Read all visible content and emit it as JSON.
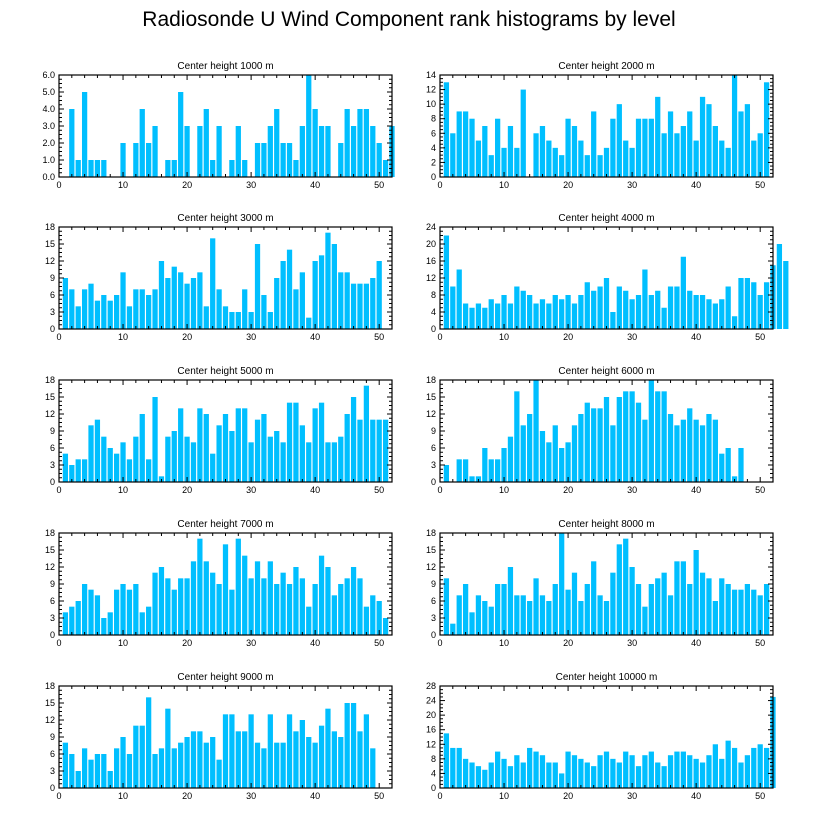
{
  "title": "Radiosonde U Wind Component rank histograms by level",
  "bar_color": "#00bfff",
  "chart_data": [
    {
      "type": "bar",
      "title": "Center height 1000 m",
      "xlim": [
        0,
        52
      ],
      "xticks": [
        0,
        10,
        20,
        30,
        40,
        50
      ],
      "ylim": [
        0,
        6
      ],
      "yticks": [
        0,
        1,
        2,
        3,
        4,
        5,
        6
      ],
      "ytick_labels": [
        "0.0",
        "1.0",
        "2.0",
        "3.0",
        "4.0",
        "5.0",
        "6.0"
      ],
      "values": [
        0,
        4,
        1,
        5,
        1,
        1,
        1,
        0,
        0,
        2,
        0,
        2,
        4,
        2,
        3,
        0,
        1,
        1,
        5,
        3,
        0,
        3,
        4,
        1,
        3,
        0,
        1,
        3,
        1,
        0,
        2,
        2,
        3,
        4,
        2,
        2,
        1,
        3,
        6,
        4,
        3,
        3,
        0,
        2,
        4,
        3,
        4,
        4,
        3,
        2,
        1,
        3
      ]
    },
    {
      "type": "bar",
      "title": "Center height 2000 m",
      "xlim": [
        0,
        52
      ],
      "xticks": [
        0,
        10,
        20,
        30,
        40,
        50
      ],
      "ylim": [
        0,
        14
      ],
      "yticks": [
        0,
        2,
        4,
        6,
        8,
        10,
        12,
        14
      ],
      "ytick_labels": [
        "0",
        "2",
        "4",
        "6",
        "8",
        "10",
        "12",
        "14"
      ],
      "values": [
        13,
        6,
        9,
        9,
        8,
        5,
        7,
        3,
        8,
        4,
        7,
        4,
        12,
        0,
        6,
        7,
        5,
        4,
        3,
        8,
        7,
        5,
        3,
        9,
        3,
        4,
        8,
        10,
        5,
        4,
        8,
        8,
        8,
        11,
        6,
        9,
        6,
        7,
        9,
        5,
        11,
        10,
        7,
        5,
        4,
        14,
        9,
        10,
        5,
        6,
        13
      ]
    },
    {
      "type": "bar",
      "title": "Center height 3000 m",
      "xlim": [
        0,
        52
      ],
      "xticks": [
        0,
        10,
        20,
        30,
        40,
        50
      ],
      "ylim": [
        0,
        18
      ],
      "yticks": [
        0,
        3,
        6,
        9,
        12,
        15,
        18
      ],
      "ytick_labels": [
        "0",
        "3",
        "6",
        "9",
        "12",
        "15",
        "18"
      ],
      "values": [
        9,
        7,
        4,
        7,
        8,
        5,
        6,
        5,
        6,
        10,
        4,
        7,
        7,
        6,
        7,
        12,
        9,
        11,
        10,
        8,
        9,
        10,
        4,
        16,
        7,
        4,
        3,
        3,
        7,
        3,
        15,
        6,
        3,
        9,
        12,
        14,
        7,
        10,
        2,
        12,
        13,
        17,
        15,
        10,
        10,
        8,
        8,
        8,
        9,
        12
      ]
    },
    {
      "type": "bar",
      "title": "Center height 4000 m",
      "xlim": [
        0,
        52
      ],
      "xticks": [
        0,
        10,
        20,
        30,
        40,
        50
      ],
      "ylim": [
        0,
        24
      ],
      "yticks": [
        0,
        4,
        8,
        12,
        16,
        20,
        24
      ],
      "ytick_labels": [
        "0",
        "4",
        "8",
        "12",
        "16",
        "20",
        "24"
      ],
      "values": [
        22,
        10,
        14,
        6,
        5,
        6,
        5,
        7,
        6,
        8,
        6,
        10,
        9,
        8,
        6,
        7,
        6,
        8,
        7,
        8,
        6,
        8,
        11,
        9,
        10,
        12,
        4,
        10,
        9,
        7,
        8,
        14,
        8,
        9,
        5,
        10,
        10,
        17,
        9,
        8,
        8,
        7,
        6,
        7,
        10,
        3,
        12,
        12,
        11,
        8,
        11,
        15,
        20,
        16
      ]
    },
    {
      "type": "bar",
      "title": "Center height 5000 m",
      "xlim": [
        0,
        52
      ],
      "xticks": [
        0,
        10,
        20,
        30,
        40,
        50
      ],
      "ylim": [
        0,
        18
      ],
      "yticks": [
        0,
        3,
        6,
        9,
        12,
        15,
        18
      ],
      "ytick_labels": [
        "0",
        "3",
        "6",
        "9",
        "12",
        "15",
        "18"
      ],
      "values": [
        5,
        3,
        4,
        4,
        10,
        11,
        8,
        6,
        5,
        7,
        4,
        8,
        12,
        4,
        15,
        1,
        8,
        9,
        13,
        8,
        7,
        13,
        12,
        5,
        10,
        12,
        9,
        13,
        13,
        7,
        11,
        12,
        8,
        9,
        7,
        14,
        14,
        10,
        7,
        13,
        14,
        7,
        7,
        8,
        12,
        15,
        11,
        17,
        11,
        11,
        11
      ]
    },
    {
      "type": "bar",
      "title": "Center height 6000 m",
      "xlim": [
        0,
        52
      ],
      "xticks": [
        0,
        10,
        20,
        30,
        40,
        50
      ],
      "ylim": [
        0,
        18
      ],
      "yticks": [
        0,
        3,
        6,
        9,
        12,
        15,
        18
      ],
      "ytick_labels": [
        "0",
        "3",
        "6",
        "9",
        "12",
        "15",
        "18"
      ],
      "values": [
        3,
        0,
        4,
        4,
        1,
        1,
        6,
        4,
        4,
        6,
        8,
        16,
        10,
        12,
        18,
        9,
        7,
        10,
        6,
        7,
        10,
        12,
        14,
        13,
        13,
        15,
        10,
        15,
        16,
        16,
        14,
        11,
        18,
        16,
        16,
        12,
        10,
        11,
        13,
        11,
        10,
        12,
        11,
        5,
        6,
        1,
        6
      ]
    },
    {
      "type": "bar",
      "title": "Center height 7000 m",
      "xlim": [
        0,
        52
      ],
      "xticks": [
        0,
        10,
        20,
        30,
        40,
        50
      ],
      "ylim": [
        0,
        18
      ],
      "yticks": [
        0,
        3,
        6,
        9,
        12,
        15,
        18
      ],
      "ytick_labels": [
        "0",
        "3",
        "6",
        "9",
        "12",
        "15",
        "18"
      ],
      "values": [
        4,
        5,
        6,
        9,
        8,
        7,
        3,
        4,
        8,
        9,
        8,
        9,
        4,
        5,
        11,
        12,
        10,
        8,
        10,
        10,
        13,
        17,
        13,
        11,
        9,
        16,
        8,
        17,
        14,
        10,
        13,
        10,
        13,
        9,
        11,
        9,
        12,
        10,
        5,
        9,
        14,
        12,
        7,
        9,
        10,
        12,
        10,
        5,
        7,
        6,
        3
      ]
    },
    {
      "type": "bar",
      "title": "Center height 8000 m",
      "xlim": [
        0,
        52
      ],
      "xticks": [
        0,
        10,
        20,
        30,
        40,
        50
      ],
      "ylim": [
        0,
        18
      ],
      "yticks": [
        0,
        3,
        6,
        9,
        12,
        15,
        18
      ],
      "ytick_labels": [
        "0",
        "3",
        "6",
        "9",
        "12",
        "15",
        "18"
      ],
      "values": [
        10,
        2,
        7,
        9,
        4,
        7,
        6,
        5,
        9,
        9,
        12,
        7,
        7,
        6,
        10,
        7,
        6,
        9,
        18,
        8,
        11,
        6,
        9,
        13,
        7,
        6,
        11,
        16,
        17,
        12,
        9,
        5,
        9,
        10,
        11,
        7,
        13,
        13,
        9,
        15,
        11,
        10,
        6,
        10,
        9,
        8,
        8,
        9,
        8,
        7,
        9
      ]
    },
    {
      "type": "bar",
      "title": "Center height 9000 m",
      "xlim": [
        0,
        52
      ],
      "xticks": [
        0,
        10,
        20,
        30,
        40,
        50
      ],
      "ylim": [
        0,
        18
      ],
      "yticks": [
        0,
        3,
        6,
        9,
        12,
        15,
        18
      ],
      "ytick_labels": [
        "0",
        "3",
        "6",
        "9",
        "12",
        "15",
        "18"
      ],
      "values": [
        8,
        6,
        3,
        7,
        5,
        6,
        6,
        3,
        7,
        9,
        6,
        11,
        11,
        16,
        6,
        7,
        14,
        7,
        8,
        9,
        10,
        10,
        8,
        9,
        5,
        13,
        13,
        10,
        10,
        13,
        8,
        7,
        13,
        8,
        8,
        13,
        10,
        12,
        9,
        8,
        11,
        14,
        10,
        9,
        15,
        15,
        10,
        13,
        7
      ]
    },
    {
      "type": "bar",
      "title": "Center height 10000 m",
      "xlim": [
        0,
        52
      ],
      "xticks": [
        0,
        10,
        20,
        30,
        40,
        50
      ],
      "ylim": [
        0,
        28
      ],
      "yticks": [
        0,
        4,
        8,
        12,
        16,
        20,
        24,
        28
      ],
      "ytick_labels": [
        "0",
        "4",
        "8",
        "12",
        "16",
        "20",
        "24",
        "28"
      ],
      "values": [
        15,
        11,
        11,
        8,
        7,
        6,
        5,
        7,
        10,
        8,
        6,
        9,
        7,
        11,
        10,
        9,
        7,
        7,
        4,
        10,
        9,
        8,
        7,
        6,
        9,
        10,
        8,
        7,
        10,
        9,
        6,
        9,
        10,
        7,
        6,
        9,
        10,
        10,
        9,
        8,
        7,
        9,
        12,
        8,
        13,
        11,
        7,
        9,
        11,
        12,
        11,
        25
      ]
    }
  ]
}
